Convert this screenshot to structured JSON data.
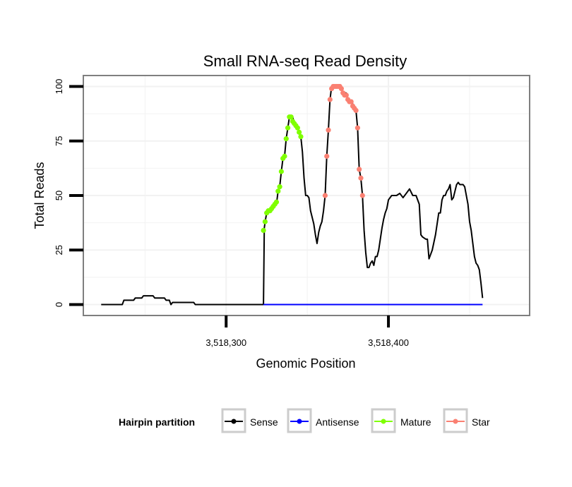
{
  "chart_data": {
    "type": "line",
    "title": "Small RNA-seq Read Density",
    "xlabel": "Genomic Position",
    "ylabel": "Total Reads",
    "xlim": [
      3518212,
      3518487
    ],
    "ylim": [
      -5,
      105
    ],
    "x_ticks": [
      3518300,
      3518400
    ],
    "x_tick_labels": [
      "3,518,300",
      "3,518,400"
    ],
    "y_ticks": [
      0,
      25,
      50,
      75,
      100
    ],
    "y_tick_labels": [
      "0",
      "25",
      "50",
      "75",
      "100"
    ],
    "grid": true,
    "legend_position": "bottom",
    "legend": {
      "title": "Hairpin partition",
      "entries": [
        {
          "label": "Sense",
          "color": "#000000"
        },
        {
          "label": "Antisense",
          "color": "#0000ff"
        },
        {
          "label": "Mature",
          "color": "#7fff00"
        },
        {
          "label": "Star",
          "color": "#fa8072"
        }
      ]
    },
    "series": [
      {
        "name": "Sense",
        "color": "#000000",
        "points": [
          [
            3518223,
            0
          ],
          [
            3518236,
            0
          ],
          [
            3518237,
            2
          ],
          [
            3518243,
            2
          ],
          [
            3518244,
            3
          ],
          [
            3518248,
            3
          ],
          [
            3518249,
            4
          ],
          [
            3518255,
            4
          ],
          [
            3518256,
            3
          ],
          [
            3518262,
            3
          ],
          [
            3518263,
            2
          ],
          [
            3518265,
            2
          ],
          [
            3518266,
            0
          ],
          [
            3518267,
            1
          ],
          [
            3518280,
            1
          ],
          [
            3518281,
            0
          ],
          [
            3518302,
            0
          ],
          [
            3518303,
            0
          ],
          [
            3518315,
            0
          ],
          [
            3518316,
            0
          ],
          [
            3518317,
            0
          ],
          [
            3518318,
            0
          ],
          [
            3518319,
            0
          ],
          [
            3518320,
            0
          ],
          [
            3518321,
            0
          ],
          [
            3518322,
            0
          ],
          [
            3518323,
            0
          ],
          [
            3518323.5,
            35
          ],
          [
            3518324,
            38
          ],
          [
            3518325,
            42
          ],
          [
            3518326,
            43
          ],
          [
            3518328,
            43
          ],
          [
            3518329,
            45
          ],
          [
            3518330,
            46
          ],
          [
            3518331,
            46
          ],
          [
            3518332,
            52
          ],
          [
            3518333,
            54
          ],
          [
            3518334,
            61
          ],
          [
            3518335,
            67
          ],
          [
            3518336,
            68
          ],
          [
            3518337,
            76
          ],
          [
            3518338,
            81
          ],
          [
            3518339,
            86
          ],
          [
            3518340,
            86
          ],
          [
            3518341,
            86
          ],
          [
            3518342,
            83
          ],
          [
            3518343,
            82
          ],
          [
            3518344,
            81
          ],
          [
            3518345,
            79
          ],
          [
            3518346,
            77
          ],
          [
            3518347,
            70
          ],
          [
            3518348,
            58
          ],
          [
            3518349,
            50
          ],
          [
            3518350,
            50
          ],
          [
            3518351,
            49
          ],
          [
            3518352,
            43
          ],
          [
            3518353,
            40
          ],
          [
            3518354,
            37
          ],
          [
            3518355,
            32
          ],
          [
            3518356,
            28
          ],
          [
            3518357,
            33
          ],
          [
            3518358,
            36
          ],
          [
            3518359,
            38
          ],
          [
            3518360,
            43
          ],
          [
            3518361,
            50
          ],
          [
            3518362,
            68
          ],
          [
            3518363,
            80
          ],
          [
            3518364,
            94
          ],
          [
            3518365,
            100
          ],
          [
            3518366,
            100
          ],
          [
            3518367,
            100
          ],
          [
            3518368,
            100
          ],
          [
            3518369,
            100
          ],
          [
            3518370,
            100
          ],
          [
            3518371,
            99
          ],
          [
            3518372,
            97
          ],
          [
            3518373,
            97
          ],
          [
            3518374,
            97
          ],
          [
            3518375,
            94
          ],
          [
            3518376,
            93
          ],
          [
            3518377,
            93
          ],
          [
            3518378,
            92
          ],
          [
            3518379,
            90
          ],
          [
            3518380,
            89
          ],
          [
            3518381,
            81
          ],
          [
            3518382,
            62
          ],
          [
            3518383,
            58
          ],
          [
            3518384,
            50
          ],
          [
            3518385,
            34
          ],
          [
            3518386,
            24
          ],
          [
            3518387,
            17
          ],
          [
            3518388,
            17
          ],
          [
            3518389,
            19
          ],
          [
            3518390,
            20
          ],
          [
            3518391,
            18
          ],
          [
            3518392,
            22
          ],
          [
            3518393,
            22
          ],
          [
            3518394,
            25
          ],
          [
            3518395,
            30
          ],
          [
            3518396,
            35
          ],
          [
            3518397,
            39
          ],
          [
            3518398,
            42
          ],
          [
            3518399,
            44
          ],
          [
            3518400,
            48
          ],
          [
            3518402,
            50
          ],
          [
            3518405,
            50
          ],
          [
            3518407,
            51
          ],
          [
            3518409,
            49
          ],
          [
            3518411,
            51
          ],
          [
            3518413,
            53
          ],
          [
            3518415,
            50
          ],
          [
            3518417,
            50
          ],
          [
            3518419,
            46
          ],
          [
            3518420,
            32
          ],
          [
            3518421,
            31
          ],
          [
            3518423,
            30
          ],
          [
            3518424,
            30
          ],
          [
            3518425,
            21
          ],
          [
            3518427,
            25
          ],
          [
            3518429,
            32
          ],
          [
            3518431,
            42
          ],
          [
            3518432,
            42
          ],
          [
            3518433,
            48
          ],
          [
            3518434,
            50
          ],
          [
            3518435,
            50
          ],
          [
            3518436,
            52
          ],
          [
            3518437,
            53
          ],
          [
            3518438,
            55
          ],
          [
            3518439,
            48
          ],
          [
            3518440,
            49
          ],
          [
            3518441,
            52
          ],
          [
            3518442,
            55
          ],
          [
            3518443,
            56
          ],
          [
            3518444,
            55
          ],
          [
            3518446,
            55
          ],
          [
            3518447,
            54
          ],
          [
            3518448,
            50
          ],
          [
            3518449,
            46
          ],
          [
            3518450,
            38
          ],
          [
            3518451,
            34
          ],
          [
            3518452,
            28
          ],
          [
            3518453,
            22
          ],
          [
            3518454,
            19
          ],
          [
            3518455,
            18
          ],
          [
            3518456,
            16
          ],
          [
            3518457,
            10
          ],
          [
            3518458,
            3
          ]
        ]
      },
      {
        "name": "Antisense",
        "color": "#0000ff",
        "points": [
          [
            3518323,
            0
          ],
          [
            3518458,
            0
          ]
        ]
      }
    ],
    "markers": [
      {
        "name": "Mature",
        "color": "#7fff00",
        "points": [
          [
            3518323,
            34
          ],
          [
            3518324,
            38
          ],
          [
            3518325,
            42
          ],
          [
            3518326,
            43
          ],
          [
            3518327,
            43
          ],
          [
            3518328,
            44
          ],
          [
            3518329,
            45
          ],
          [
            3518330,
            46
          ],
          [
            3518331,
            47
          ],
          [
            3518332,
            52
          ],
          [
            3518333,
            54
          ],
          [
            3518334,
            61
          ],
          [
            3518335,
            67
          ],
          [
            3518336,
            68
          ],
          [
            3518337,
            76
          ],
          [
            3518338,
            81
          ],
          [
            3518339,
            86
          ],
          [
            3518340,
            86
          ],
          [
            3518341,
            84
          ],
          [
            3518342,
            83
          ],
          [
            3518343,
            82
          ],
          [
            3518344,
            81
          ],
          [
            3518345,
            79
          ],
          [
            3518346,
            77
          ]
        ]
      },
      {
        "name": "Star",
        "color": "#fa8072",
        "points": [
          [
            3518361,
            50
          ],
          [
            3518362,
            68
          ],
          [
            3518363,
            80
          ],
          [
            3518364,
            94
          ],
          [
            3518365,
            99
          ],
          [
            3518366,
            100
          ],
          [
            3518367,
            100
          ],
          [
            3518368,
            100
          ],
          [
            3518369,
            100
          ],
          [
            3518370,
            100
          ],
          [
            3518371,
            99
          ],
          [
            3518372,
            97
          ],
          [
            3518373,
            96
          ],
          [
            3518374,
            96
          ],
          [
            3518375,
            94
          ],
          [
            3518376,
            93
          ],
          [
            3518377,
            93
          ],
          [
            3518378,
            91
          ],
          [
            3518379,
            90
          ],
          [
            3518380,
            89
          ],
          [
            3518381,
            81
          ],
          [
            3518382,
            62
          ],
          [
            3518383,
            58
          ],
          [
            3518384,
            50
          ]
        ]
      }
    ]
  }
}
